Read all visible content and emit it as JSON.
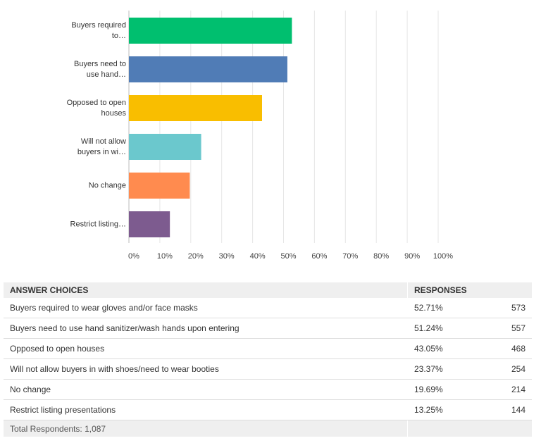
{
  "chart_data": {
    "type": "bar",
    "orientation": "horizontal",
    "categories": [
      "Buyers required to…",
      "Buyers need to use hand…",
      "Opposed to open houses",
      "Will not allow buyers in wi…",
      "No change",
      "Restrict listing…"
    ],
    "values": [
      52.71,
      51.24,
      43.05,
      23.37,
      19.69,
      13.25
    ],
    "colors": [
      "#00bf6f",
      "#507cb6",
      "#f9be00",
      "#6bc8cd",
      "#ff8b4f",
      "#7d5b8f"
    ],
    "xlim": [
      0,
      100
    ],
    "xticks": [
      {
        "value": 0,
        "label": "0%"
      },
      {
        "value": 10,
        "label": "10%"
      },
      {
        "value": 20,
        "label": "20%"
      },
      {
        "value": 30,
        "label": "30%"
      },
      {
        "value": 40,
        "label": "40%"
      },
      {
        "value": 50,
        "label": "50%"
      },
      {
        "value": 60,
        "label": "60%"
      },
      {
        "value": 70,
        "label": "70%"
      },
      {
        "value": 80,
        "label": "80%"
      },
      {
        "value": 90,
        "label": "90%"
      },
      {
        "value": 100,
        "label": "100%"
      }
    ],
    "grid": true
  },
  "table": {
    "header": [
      "ANSWER CHOICES",
      "RESPONSES"
    ],
    "rows": [
      [
        "Buyers required to wear gloves and/or face masks",
        "52.71%",
        "573"
      ],
      [
        "Buyers need to use hand sanitizer/wash hands upon entering",
        "51.24%",
        "557"
      ],
      [
        "Opposed to open houses",
        "43.05%",
        "468"
      ],
      [
        "Will not allow buyers in with shoes/need to wear booties",
        "23.37%",
        "254"
      ],
      [
        "No change",
        "19.69%",
        "214"
      ],
      [
        "Restrict listing presentations",
        "13.25%",
        "144"
      ]
    ],
    "footer": "Total Respondents: 1,087"
  }
}
